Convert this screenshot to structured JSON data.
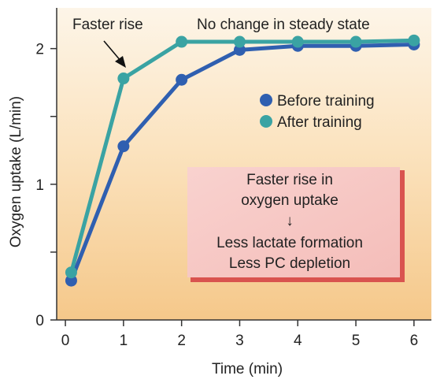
{
  "chart_data": {
    "type": "line",
    "xlabel": "Time (min)",
    "ylabel": "Oxygen uptake (L/min)",
    "xlim": [
      -0.15,
      6.3
    ],
    "ylim": [
      0,
      2.3
    ],
    "x_ticks": [
      "0",
      "1",
      "2",
      "3",
      "4",
      "5",
      "6"
    ],
    "y_ticks": [
      "0",
      "1",
      "2"
    ],
    "legend_position": "right",
    "series": [
      {
        "name": "Before training",
        "color": "#2f5fb0",
        "x": [
          0.1,
          1,
          2,
          3,
          4,
          5,
          6
        ],
        "y": [
          0.29,
          1.28,
          1.77,
          1.99,
          2.02,
          2.02,
          2.03
        ]
      },
      {
        "name": "After training",
        "color": "#3aa3a3",
        "x": [
          0.1,
          1,
          2,
          3,
          4,
          5,
          6
        ],
        "y": [
          0.35,
          1.78,
          2.05,
          2.05,
          2.05,
          2.05,
          2.06
        ]
      }
    ],
    "annotations": {
      "faster_rise": "Faster rise",
      "steady_state": "No change in steady state"
    },
    "box": {
      "line1": "Faster rise in",
      "line2": "oxygen uptake",
      "arrow": "↓",
      "line3": "Less lactate formation",
      "line4": "Less PC depletion"
    }
  }
}
